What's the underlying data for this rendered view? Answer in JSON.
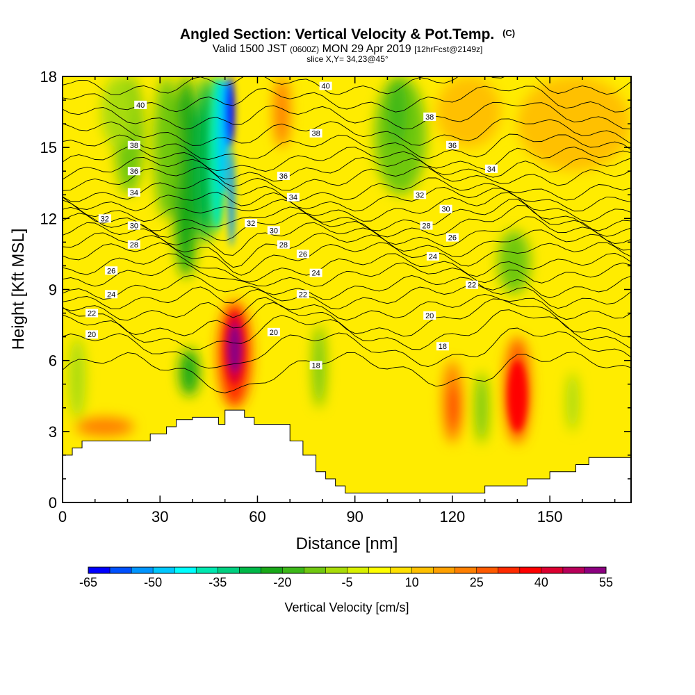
{
  "title": {
    "main": "Angled Section: Vertical Velocity & Pot.Temp.",
    "main_suffix": "(C)",
    "valid_prefix": "Valid 1500 JST",
    "valid_utc": "(0600Z)",
    "valid_date": "MON 29 Apr 2019",
    "forecast": "[12hrFcst@2149z]",
    "slice": "slice X,Y= 34,23@45°"
  },
  "chart_data": {
    "type": "heatmap",
    "xlabel": "Distance [nm]",
    "ylabel": "Height [Kft MSL]",
    "xlim": [
      0,
      175
    ],
    "ylim": [
      0,
      18
    ],
    "x_ticks": [
      0,
      30,
      60,
      90,
      120,
      150
    ],
    "y_ticks": [
      0,
      3,
      6,
      9,
      12,
      15,
      18
    ],
    "colorbar": {
      "title": "Vertical Velocity [cm/s]",
      "tick_labels": [
        "-65",
        "-50",
        "-35",
        "-20",
        "-5",
        "10",
        "25",
        "40",
        "55"
      ],
      "levels": [
        -65,
        -60,
        -55,
        -50,
        -45,
        -40,
        -35,
        -30,
        -25,
        -20,
        -15,
        -10,
        -5,
        0,
        5,
        10,
        15,
        20,
        25,
        30,
        35,
        40,
        45,
        50,
        55
      ],
      "colors": [
        "#0000ff",
        "#0050ff",
        "#0095ff",
        "#00c8ff",
        "#00ffff",
        "#00e8b0",
        "#00d080",
        "#00b848",
        "#18a818",
        "#3cb818",
        "#70c810",
        "#a8dc08",
        "#d8f000",
        "#ffff00",
        "#ffe000",
        "#ffc000",
        "#ffa000",
        "#ff7f00",
        "#ff5a00",
        "#ff2a00",
        "#ff0000",
        "#dc0030",
        "#b8005a",
        "#8c0080",
        "#5a0090"
      ],
      "background": "#ffec00"
    },
    "vertical_velocity_cells": [
      {
        "x": [
          34,
          42
        ],
        "y": [
          9.5,
          18
        ],
        "value": -22
      },
      {
        "x": [
          28,
          36
        ],
        "y": [
          12,
          18
        ],
        "value": -15
      },
      {
        "x": [
          16,
          25
        ],
        "y": [
          13,
          18
        ],
        "value": -12
      },
      {
        "x": [
          12,
          22
        ],
        "y": [
          15,
          18
        ],
        "value": -8
      },
      {
        "x": [
          41,
          48
        ],
        "y": [
          11,
          18
        ],
        "value": -28
      },
      {
        "x": [
          45,
          50
        ],
        "y": [
          11.5,
          18
        ],
        "value": -36
      },
      {
        "x": [
          48,
          51
        ],
        "y": [
          13,
          18
        ],
        "value": -48
      },
      {
        "x": [
          50,
          53
        ],
        "y": [
          15,
          18
        ],
        "value": -62
      },
      {
        "x": [
          51,
          53
        ],
        "y": [
          10.8,
          15
        ],
        "value": -52
      },
      {
        "x": [
          96,
          112
        ],
        "y": [
          13,
          18
        ],
        "value": -12
      },
      {
        "x": [
          100,
          106
        ],
        "y": [
          15,
          18
        ],
        "value": -18
      },
      {
        "x": [
          134,
          144
        ],
        "y": [
          8.8,
          11.5
        ],
        "value": -15
      },
      {
        "x": [
          2,
          7
        ],
        "y": [
          3.5,
          7
        ],
        "value": -10
      },
      {
        "x": [
          36,
          42
        ],
        "y": [
          4.5,
          6.5
        ],
        "value": -22
      },
      {
        "x": [
          77,
          81
        ],
        "y": [
          4,
          7.5
        ],
        "value": -12
      },
      {
        "x": [
          127,
          131
        ],
        "y": [
          2.5,
          5.5
        ],
        "value": -15
      },
      {
        "x": [
          155,
          159
        ],
        "y": [
          3,
          5.5
        ],
        "value": -10
      },
      {
        "x": [
          65,
          70
        ],
        "y": [
          15,
          18
        ],
        "value": 20
      },
      {
        "x": [
          48,
          58
        ],
        "y": [
          4,
          8.5
        ],
        "value": 30
      },
      {
        "x": [
          50,
          56
        ],
        "y": [
          5,
          8
        ],
        "value": 42
      },
      {
        "x": [
          51,
          55
        ],
        "y": [
          5.5,
          7.5
        ],
        "value": 52
      },
      {
        "x": [
          117,
          123
        ],
        "y": [
          2.5,
          6
        ],
        "value": 22
      },
      {
        "x": [
          119,
          122
        ],
        "y": [
          3,
          5
        ],
        "value": 32
      },
      {
        "x": [
          136,
          144
        ],
        "y": [
          2.5,
          7
        ],
        "value": 28
      },
      {
        "x": [
          137,
          143
        ],
        "y": [
          3,
          6
        ],
        "value": 38
      },
      {
        "x": [
          4,
          22
        ],
        "y": [
          2.8,
          3.6
        ],
        "value": 20
      },
      {
        "x": [
          140,
          175
        ],
        "y": [
          14,
          18
        ],
        "value": 14
      },
      {
        "x": [
          115,
          135
        ],
        "y": [
          15,
          18
        ],
        "value": 12
      }
    ],
    "terrain": {
      "x": [
        0,
        3,
        3,
        6,
        6,
        8,
        8,
        19,
        19,
        23,
        23,
        27,
        27,
        32,
        32,
        35,
        35,
        40,
        40,
        45,
        45,
        48,
        48,
        50,
        50,
        56,
        56,
        59,
        59,
        70,
        70,
        74,
        74,
        78,
        78,
        81,
        81,
        84,
        84,
        87,
        87,
        90,
        90,
        130,
        130,
        143,
        143,
        150,
        150,
        158,
        158,
        162,
        162,
        175
      ],
      "y": [
        2.0,
        2.0,
        2.3,
        2.3,
        2.6,
        2.6,
        2.6,
        2.6,
        2.6,
        2.6,
        2.6,
        2.6,
        2.9,
        2.9,
        3.2,
        3.2,
        3.5,
        3.5,
        3.6,
        3.6,
        3.6,
        3.6,
        3.3,
        3.3,
        3.9,
        3.9,
        3.6,
        3.6,
        3.3,
        3.3,
        2.6,
        2.6,
        2.0,
        2.0,
        1.3,
        1.3,
        1.0,
        1.0,
        0.7,
        0.7,
        0.4,
        0.4,
        0.4,
        0.4,
        0.7,
        0.7,
        1.0,
        1.0,
        1.3,
        1.3,
        1.6,
        1.6,
        1.9,
        1.9
      ]
    },
    "pot_temp_contours": [
      {
        "level": 18,
        "base": 5.6
      },
      {
        "level": 19,
        "base": 6.5
      },
      {
        "level": 20,
        "base": 7.2
      },
      {
        "level": 21,
        "base": 7.7
      },
      {
        "level": 22,
        "base": 8.2
      },
      {
        "level": 23,
        "base": 8.7
      },
      {
        "level": 24,
        "base": 9.1
      },
      {
        "level": 25,
        "base": 9.6
      },
      {
        "level": 26,
        "base": 10.0
      },
      {
        "level": 27,
        "base": 10.5
      },
      {
        "level": 28,
        "base": 10.9
      },
      {
        "level": 29,
        "base": 11.3
      },
      {
        "level": 30,
        "base": 11.7
      },
      {
        "level": 31,
        "base": 12.0
      },
      {
        "level": 32,
        "base": 12.4
      },
      {
        "level": 33,
        "base": 12.8
      },
      {
        "level": 34,
        "base": 13.2
      },
      {
        "level": 35,
        "base": 13.7
      },
      {
        "level": 36,
        "base": 14.1
      },
      {
        "level": 37,
        "base": 14.5
      },
      {
        "level": 38,
        "base": 15.0
      },
      {
        "level": 39,
        "base": 15.6
      },
      {
        "level": 40,
        "base": 16.3
      },
      {
        "level": 41,
        "base": 17.0
      },
      {
        "level": 42,
        "base": 17.7
      }
    ],
    "contour_labels": [
      {
        "text": "40",
        "x": 24,
        "y": 16.8
      },
      {
        "text": "40",
        "x": 81,
        "y": 17.6
      },
      {
        "text": "38",
        "x": 22,
        "y": 15.1
      },
      {
        "text": "38",
        "x": 78,
        "y": 15.6
      },
      {
        "text": "38",
        "x": 113,
        "y": 16.3
      },
      {
        "text": "36",
        "x": 22,
        "y": 14.0
      },
      {
        "text": "36",
        "x": 68,
        "y": 13.8
      },
      {
        "text": "36",
        "x": 120,
        "y": 15.1
      },
      {
        "text": "34",
        "x": 22,
        "y": 13.1
      },
      {
        "text": "34",
        "x": 71,
        "y": 12.9
      },
      {
        "text": "34",
        "x": 132,
        "y": 14.1
      },
      {
        "text": "32",
        "x": 13,
        "y": 12.0
      },
      {
        "text": "32",
        "x": 58,
        "y": 11.8
      },
      {
        "text": "32",
        "x": 110,
        "y": 13.0
      },
      {
        "text": "30",
        "x": 22,
        "y": 11.7
      },
      {
        "text": "30",
        "x": 65,
        "y": 11.5
      },
      {
        "text": "30",
        "x": 118,
        "y": 12.4
      },
      {
        "text": "28",
        "x": 22,
        "y": 10.9
      },
      {
        "text": "28",
        "x": 68,
        "y": 10.9
      },
      {
        "text": "28",
        "x": 112,
        "y": 11.7
      },
      {
        "text": "26",
        "x": 15,
        "y": 9.8
      },
      {
        "text": "26",
        "x": 74,
        "y": 10.5
      },
      {
        "text": "26",
        "x": 120,
        "y": 11.2
      },
      {
        "text": "24",
        "x": 15,
        "y": 8.8
      },
      {
        "text": "24",
        "x": 78,
        "y": 9.7
      },
      {
        "text": "24",
        "x": 114,
        "y": 10.4
      },
      {
        "text": "22",
        "x": 9,
        "y": 8.0
      },
      {
        "text": "22",
        "x": 74,
        "y": 8.8
      },
      {
        "text": "22",
        "x": 126,
        "y": 9.2
      },
      {
        "text": "20",
        "x": 9,
        "y": 7.1
      },
      {
        "text": "20",
        "x": 65,
        "y": 7.2
      },
      {
        "text": "20",
        "x": 113,
        "y": 7.9
      },
      {
        "text": "18",
        "x": 78,
        "y": 5.8
      },
      {
        "text": "18",
        "x": 117,
        "y": 6.6
      }
    ]
  }
}
